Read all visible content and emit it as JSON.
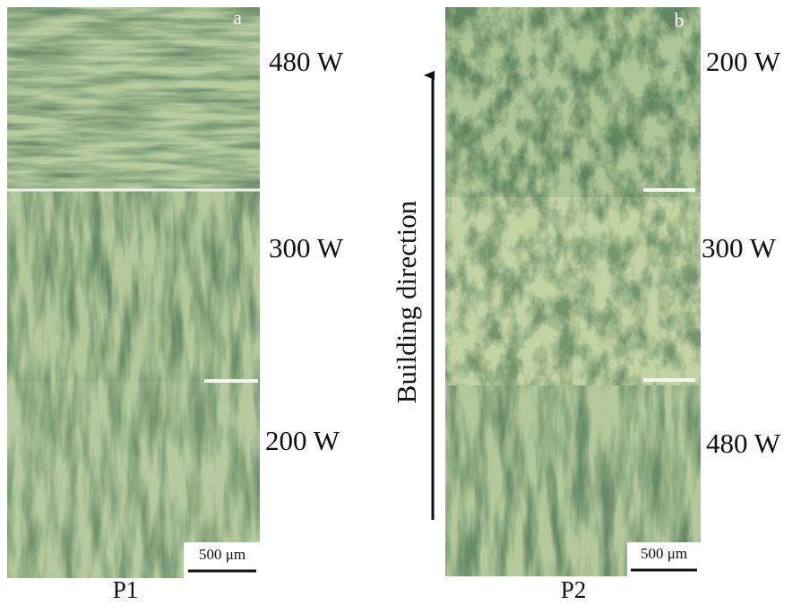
{
  "panels": [
    {
      "corner": "a",
      "name": "P1",
      "layers": [
        "480 W",
        "300 W",
        "200 W"
      ],
      "scale_bar": "500 μm"
    },
    {
      "corner": "b",
      "name": "P2",
      "layers": [
        "200 W",
        "300 W",
        "480 W"
      ],
      "scale_bar": "500 μm"
    }
  ],
  "arrow_label": "Building direction"
}
